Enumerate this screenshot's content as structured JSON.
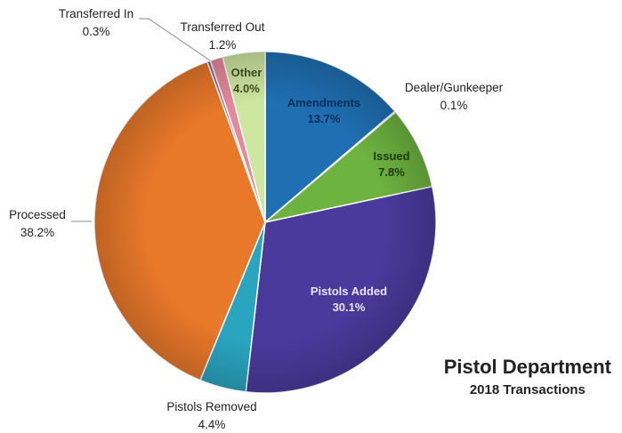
{
  "chart_data": {
    "type": "pie",
    "title": "Pistol Department",
    "subtitle": "2018 Transactions",
    "slices": [
      {
        "name": "Amendments",
        "value": 13.7,
        "label": "13.7%",
        "color": "#1f6fb2"
      },
      {
        "name": "Dealer/Gunkeeper",
        "value": 0.1,
        "label": "0.1%",
        "color": "#8fa8c8"
      },
      {
        "name": "Issued",
        "value": 7.8,
        "label": "7.8%",
        "color": "#6db33f"
      },
      {
        "name": "Pistols Added",
        "value": 30.1,
        "label": "30.1%",
        "color": "#4a3a9c"
      },
      {
        "name": "Pistols Removed",
        "value": 4.4,
        "label": "4.4%",
        "color": "#2aa5c0"
      },
      {
        "name": "Processed",
        "value": 38.2,
        "label": "38.2%",
        "color": "#e8782a"
      },
      {
        "name": "Transferred In",
        "value": 0.3,
        "label": "0.3%",
        "color": "#7a5fa0"
      },
      {
        "name": "Transferred Out",
        "value": 1.2,
        "label": "1.2%",
        "color": "#e58a9a"
      },
      {
        "name": "Other",
        "value": 4.0,
        "label": "4.0%",
        "color": "#cde6a0"
      }
    ],
    "legend": "none"
  }
}
